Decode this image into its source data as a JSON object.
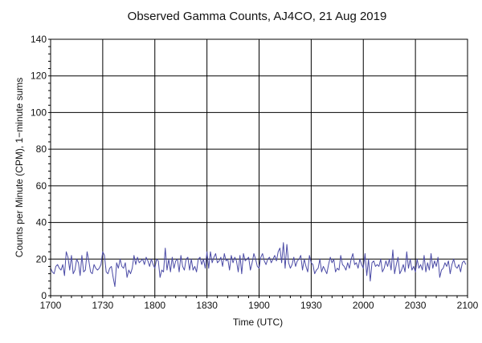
{
  "chart_data": {
    "type": "line",
    "title": "Observed Gamma Counts, AJ4CO, 21 Aug 2019",
    "xlabel": "Time (UTC)",
    "ylabel": "Counts per Minute (CPM), 1−minute sums",
    "x_tick_labels": [
      "1700",
      "1730",
      "1800",
      "1830",
      "1900",
      "1930",
      "2000",
      "2030",
      "2100"
    ],
    "y_ticks": [
      0,
      20,
      40,
      60,
      80,
      100,
      120,
      140
    ],
    "ylim": [
      0,
      140
    ],
    "xlim_minutes": [
      0,
      240
    ],
    "grid": true,
    "legend": "none",
    "line_color": "#4b4ba6",
    "grid_color": "#000000",
    "series": [
      {
        "x_start_minute": 0,
        "x_step_minute": 1,
        "values": [
          15,
          13,
          12,
          16,
          17,
          15,
          14,
          17,
          11,
          24,
          21,
          14,
          22,
          12,
          14,
          20,
          18,
          11,
          22,
          13,
          14,
          24,
          19,
          13,
          12,
          17,
          15,
          14,
          15,
          17,
          24,
          22,
          13,
          12,
          15,
          16,
          10,
          5,
          18,
          15,
          20,
          16,
          15,
          18,
          10,
          14,
          12,
          15,
          22,
          17,
          21,
          18,
          19,
          20,
          17,
          21,
          19,
          16,
          20,
          17,
          15,
          20,
          19,
          10,
          14,
          13,
          26,
          14,
          20,
          13,
          21,
          15,
          19,
          20,
          13,
          22,
          16,
          14,
          20,
          21,
          14,
          20,
          14,
          16,
          13,
          20,
          21,
          17,
          20,
          15,
          24,
          15,
          24,
          18,
          21,
          23,
          18,
          19,
          21,
          16,
          23,
          19,
          20,
          14,
          22,
          18,
          21,
          19,
          13,
          22,
          12,
          23,
          19,
          20,
          21,
          14,
          18,
          23,
          20,
          16,
          15,
          21,
          23,
          19,
          17,
          20,
          21,
          18,
          20,
          22,
          19,
          24,
          26,
          18,
          29,
          15,
          28,
          18,
          15,
          17,
          21,
          16,
          19,
          20,
          22,
          14,
          20,
          16,
          13,
          22,
          18,
          17,
          12,
          14,
          15,
          20,
          13,
          16,
          14,
          12,
          17,
          21,
          18,
          20,
          13,
          15,
          14,
          22,
          17,
          16,
          14,
          18,
          15,
          20,
          23,
          17,
          18,
          15,
          20,
          17,
          15,
          23,
          11,
          20,
          8,
          18,
          19,
          16,
          17,
          16,
          20,
          13,
          15,
          19,
          16,
          20,
          14,
          25,
          12,
          17,
          21,
          12,
          14,
          17,
          13,
          24,
          15,
          20,
          14,
          16,
          13,
          20,
          15,
          17,
          14,
          22,
          13,
          18,
          14,
          23,
          15,
          19,
          16,
          21,
          10,
          14,
          15,
          18,
          16,
          19,
          12,
          17,
          20,
          16,
          15,
          17,
          13,
          18,
          19,
          17
        ]
      }
    ]
  }
}
